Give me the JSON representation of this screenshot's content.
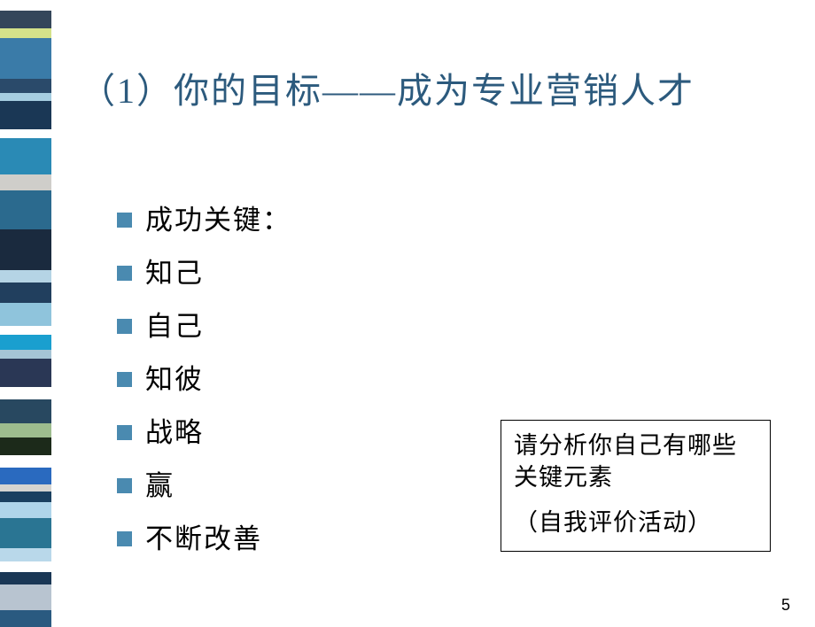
{
  "title": "（1）你的目标——成为专业营销人才",
  "bullets": [
    {
      "text": "成功关键："
    },
    {
      "text": "知己"
    },
    {
      "text": "自己"
    },
    {
      "text": "知彼"
    },
    {
      "text": "战略"
    },
    {
      "text": "赢"
    },
    {
      "text": "不断改善"
    }
  ],
  "callout": {
    "line1": "请分析你自己有哪些关键元素",
    "line2": "（自我评价活动）"
  },
  "page_number": "5",
  "bar_segments": [
    {
      "color": "#ffffff",
      "height": 12
    },
    {
      "color": "#34465a",
      "height": 20
    },
    {
      "color": "#d4e28a",
      "height": 12
    },
    {
      "color": "#3a7ba8",
      "height": 46
    },
    {
      "color": "#2a4a6a",
      "height": 16
    },
    {
      "color": "#a5cde0",
      "height": 10
    },
    {
      "color": "#1a3755",
      "height": 32
    },
    {
      "color": "#ffffff",
      "height": 10
    },
    {
      "color": "#2a8ab5",
      "height": 42
    },
    {
      "color": "#cfceca",
      "height": 18
    },
    {
      "color": "#2b6a8e",
      "height": 45
    },
    {
      "color": "#1a2a3e",
      "height": 46
    },
    {
      "color": "#b5d4e5",
      "height": 14
    },
    {
      "color": "#213f5e",
      "height": 24
    },
    {
      "color": "#8fc4dc",
      "height": 26
    },
    {
      "color": "#ffffff",
      "height": 10
    },
    {
      "color": "#1a9fcf",
      "height": 18
    },
    {
      "color": "#a5c4d5",
      "height": 10
    },
    {
      "color": "#2a3755",
      "height": 32
    },
    {
      "color": "#ffffff",
      "height": 14
    },
    {
      "color": "#284860",
      "height": 28
    },
    {
      "color": "#9dbc8e",
      "height": 16
    },
    {
      "color": "#1c2a1a",
      "height": 20
    },
    {
      "color": "#ffffff",
      "height": 14
    },
    {
      "color": "#2a6abf",
      "height": 20
    },
    {
      "color": "#d5d4d0",
      "height": 8
    },
    {
      "color": "#1a4060",
      "height": 12
    },
    {
      "color": "#afd5ea",
      "height": 18
    },
    {
      "color": "#2a7593",
      "height": 35
    },
    {
      "color": "#b9d8ea",
      "height": 15
    },
    {
      "color": "#ffffff",
      "height": 12
    },
    {
      "color": "#1a3755",
      "height": 14
    },
    {
      "color": "#b8c4d0",
      "height": 30
    },
    {
      "color": "#2a5a80",
      "height": 19
    }
  ],
  "style": {
    "bullet_color": "#4a8ab0",
    "bullet_size": 17,
    "title_color": "#2c5a7d",
    "title_fontsize": 40,
    "body_fontsize": 31,
    "callout_fontsize": 27,
    "background": "#ffffff"
  }
}
